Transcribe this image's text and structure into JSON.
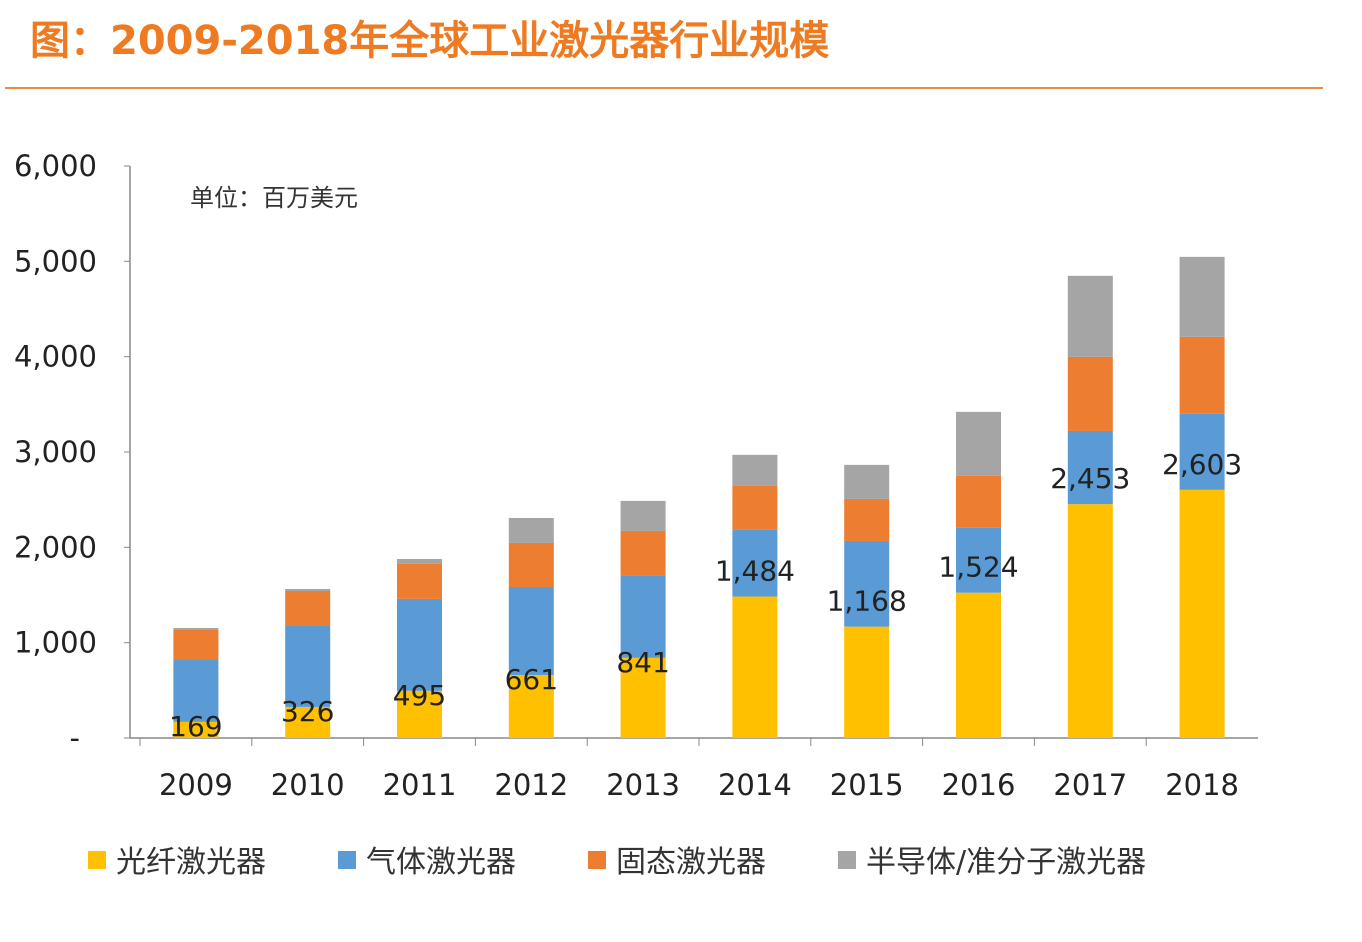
{
  "title": "图：2009-2018年全球工业激光器行业规模",
  "chart_data": {
    "type": "bar",
    "stacked": true,
    "title": "图：2009-2018年全球工业激光器行业规模",
    "unit_note": "单位：百万美元",
    "categories": [
      "2009",
      "2010",
      "2011",
      "2012",
      "2013",
      "2014",
      "2015",
      "2016",
      "2017",
      "2018"
    ],
    "series": [
      {
        "name": "光纤激光器",
        "color": "#ffc000",
        "values": [
          169,
          326,
          495,
          661,
          841,
          1484,
          1168,
          1524,
          2453,
          2603
        ],
        "labels": [
          "169",
          "326",
          "495",
          "661",
          "841",
          "1,484",
          "1,168",
          "1,524",
          "2,453",
          "2,603"
        ]
      },
      {
        "name": "气体激光器",
        "color": "#5b9bd5",
        "values": [
          649,
          849,
          964,
          923,
          859,
          699,
          899,
          680,
          768,
          797
        ]
      },
      {
        "name": "固态激光器",
        "color": "#ed7d31",
        "values": [
          315,
          367,
          367,
          462,
          472,
          461,
          441,
          545,
          777,
          808
        ]
      },
      {
        "name": "半导体/准分子激光器",
        "color": "#a5a5a5",
        "values": [
          21,
          21,
          52,
          262,
          315,
          326,
          357,
          672,
          850,
          839
        ]
      }
    ],
    "ylim": [
      0,
      6000
    ],
    "yticks": [
      0,
      1000,
      2000,
      3000,
      4000,
      5000,
      6000
    ],
    "ytick_labels": [
      "-",
      "1,000",
      "2,000",
      "3,000",
      "4,000",
      "5,000",
      "6,000"
    ],
    "grid": false,
    "legend": "bottom"
  }
}
